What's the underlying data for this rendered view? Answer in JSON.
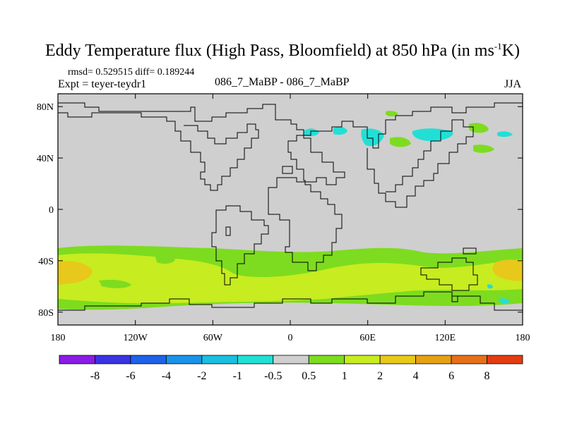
{
  "title": {
    "main": "Eddy Temperature flux (High Pass, Bloomfield) at 850 hPa (in ms",
    "superscript": "-1",
    "suffix": "K)"
  },
  "stats": {
    "rmsd_line": "rmsd= 0.529515 diff= 0.189244",
    "experiment": "Expt = teyer-teydr1",
    "center_label": "086_7_MaBP - 086_7_MaBP",
    "season": "JJA"
  },
  "axes": {
    "lat_ticks": [
      {
        "label": "80N",
        "value": 80
      },
      {
        "label": "40N",
        "value": 40
      },
      {
        "label": "0",
        "value": 0
      },
      {
        "label": "40S",
        "value": -40
      },
      {
        "label": "80S",
        "value": -80
      }
    ],
    "lon_ticks": [
      {
        "label": "180",
        "value": -180
      },
      {
        "label": "120W",
        "value": -120
      },
      {
        "label": "60W",
        "value": -60
      },
      {
        "label": "0",
        "value": 0
      },
      {
        "label": "60E",
        "value": 60
      },
      {
        "label": "120E",
        "value": 120
      },
      {
        "label": "180",
        "value": 180
      }
    ],
    "lat_range": [
      -90,
      90
    ],
    "lon_range": [
      -180,
      180
    ]
  },
  "colorbar": {
    "colors": [
      "#8a1ce6",
      "#3b32e0",
      "#1d62e8",
      "#1a93e8",
      "#1bbfe0",
      "#22dfd6",
      "#cfcfcf",
      "#7ddc1f",
      "#c7ec20",
      "#e8c81a",
      "#e6a014",
      "#e6701a",
      "#e23c12"
    ],
    "labels": [
      "-8",
      "-6",
      "-4",
      "-2",
      "-1",
      "-0.5",
      "0.5",
      "1",
      "2",
      "4",
      "6",
      "8"
    ]
  },
  "colors": {
    "land_outline": "#000000",
    "background_field": "#cfcfcf"
  }
}
